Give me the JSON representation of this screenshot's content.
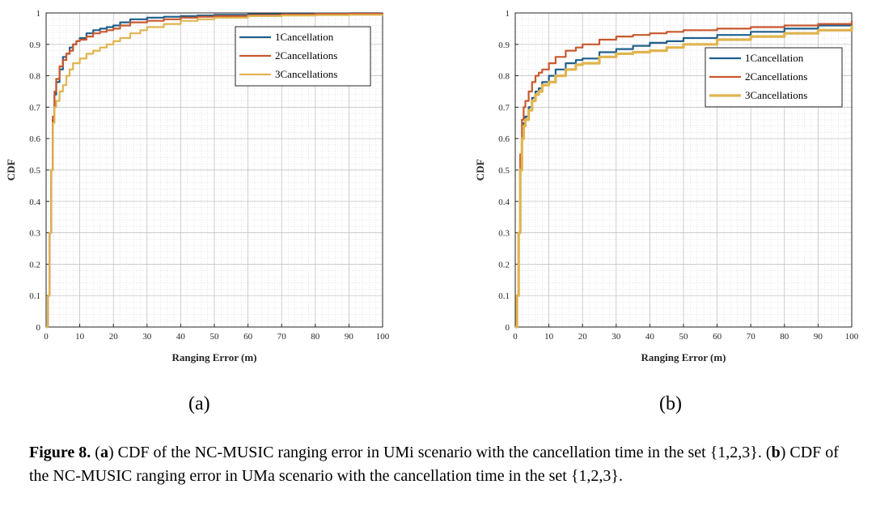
{
  "chart_data": [
    {
      "type": "line",
      "panel": "a",
      "xlabel": "Ranging Error (m)",
      "ylabel": "CDF",
      "xlim": [
        0,
        100
      ],
      "ylim": [
        0,
        1
      ],
      "xticks": [
        "0",
        "10",
        "20",
        "30",
        "40",
        "50",
        "60",
        "70",
        "80",
        "90",
        "100"
      ],
      "yticks": [
        "0",
        "0.1",
        "0.2",
        "0.3",
        "0.4",
        "0.5",
        "0.6",
        "0.7",
        "0.8",
        "0.9",
        "1"
      ],
      "grid": "major and minor (dotted)",
      "legend_position": "top-right",
      "series": [
        {
          "name": "1Cancellation",
          "color": "#1f5f8c",
          "width": 2.2,
          "x": [
            0,
            0.5,
            1,
            1.5,
            2,
            2.5,
            3,
            4,
            5,
            6,
            7,
            8,
            9,
            10,
            12,
            14,
            16,
            18,
            20,
            22,
            25,
            30,
            35,
            40,
            45,
            50,
            60,
            70,
            80,
            90,
            100
          ],
          "y": [
            0,
            0.1,
            0.3,
            0.5,
            0.66,
            0.74,
            0.78,
            0.82,
            0.86,
            0.87,
            0.89,
            0.9,
            0.91,
            0.92,
            0.935,
            0.945,
            0.95,
            0.955,
            0.96,
            0.97,
            0.98,
            0.985,
            0.988,
            0.99,
            0.992,
            0.994,
            0.996,
            0.997,
            0.998,
            0.999,
            1.0
          ]
        },
        {
          "name": "2Cancellations",
          "color": "#c8582e",
          "width": 2.2,
          "x": [
            0,
            0.5,
            1,
            1.5,
            2,
            2.5,
            3,
            4,
            5,
            6,
            7,
            8,
            9,
            10,
            12,
            14,
            16,
            18,
            20,
            22,
            25,
            30,
            35,
            40,
            45,
            50,
            60,
            70,
            80,
            90,
            100
          ],
          "y": [
            0,
            0.1,
            0.3,
            0.5,
            0.67,
            0.75,
            0.79,
            0.83,
            0.85,
            0.87,
            0.88,
            0.9,
            0.91,
            0.915,
            0.925,
            0.935,
            0.94,
            0.945,
            0.95,
            0.96,
            0.97,
            0.975,
            0.98,
            0.985,
            0.988,
            0.99,
            0.993,
            0.995,
            0.997,
            0.998,
            0.999
          ]
        },
        {
          "name": "3Cancellations",
          "color": "#e0b44f",
          "width": 2.2,
          "x": [
            0,
            0.5,
            1,
            1.5,
            2,
            2.5,
            3,
            4,
            5,
            6,
            7,
            8,
            10,
            12,
            14,
            16,
            18,
            20,
            22,
            25,
            28,
            30,
            35,
            40,
            45,
            50,
            60,
            70,
            80,
            90,
            100
          ],
          "y": [
            0,
            0.1,
            0.3,
            0.5,
            0.65,
            0.7,
            0.72,
            0.75,
            0.77,
            0.8,
            0.82,
            0.84,
            0.855,
            0.87,
            0.88,
            0.89,
            0.9,
            0.91,
            0.92,
            0.935,
            0.945,
            0.955,
            0.965,
            0.975,
            0.98,
            0.985,
            0.99,
            0.992,
            0.993,
            0.994,
            0.995
          ]
        }
      ]
    },
    {
      "type": "line",
      "panel": "b",
      "xlabel": "Ranging Error (m)",
      "ylabel": "CDF",
      "xlim": [
        0,
        100
      ],
      "ylim": [
        0,
        1
      ],
      "xticks": [
        "0",
        "10",
        "20",
        "30",
        "40",
        "50",
        "60",
        "70",
        "80",
        "90",
        "100"
      ],
      "yticks": [
        "0",
        "0.1",
        "0.2",
        "0.3",
        "0.4",
        "0.5",
        "0.6",
        "0.7",
        "0.8",
        "0.9",
        "1"
      ],
      "grid": "major and minor (dotted)",
      "legend_position": "top-right",
      "series": [
        {
          "name": "1Cancellation",
          "color": "#1f5f8c",
          "width": 2.2,
          "x": [
            0,
            0.5,
            1,
            1.5,
            2,
            2.5,
            3,
            4,
            5,
            6,
            7,
            8,
            10,
            12,
            15,
            18,
            20,
            25,
            30,
            35,
            40,
            45,
            50,
            60,
            70,
            80,
            90,
            100
          ],
          "y": [
            0,
            0.1,
            0.3,
            0.5,
            0.6,
            0.65,
            0.67,
            0.7,
            0.73,
            0.75,
            0.76,
            0.78,
            0.8,
            0.82,
            0.84,
            0.85,
            0.855,
            0.875,
            0.885,
            0.895,
            0.905,
            0.91,
            0.92,
            0.93,
            0.94,
            0.95,
            0.96,
            0.965
          ]
        },
        {
          "name": "2Cancellations",
          "color": "#c8582e",
          "width": 2.2,
          "x": [
            0,
            0.5,
            1,
            1.5,
            2,
            2.5,
            3,
            4,
            5,
            6,
            7,
            8,
            10,
            12,
            15,
            18,
            20,
            25,
            30,
            35,
            40,
            45,
            50,
            60,
            70,
            80,
            90,
            100
          ],
          "y": [
            0,
            0.1,
            0.3,
            0.55,
            0.66,
            0.7,
            0.72,
            0.75,
            0.78,
            0.8,
            0.81,
            0.82,
            0.84,
            0.86,
            0.88,
            0.89,
            0.9,
            0.915,
            0.925,
            0.93,
            0.935,
            0.94,
            0.945,
            0.95,
            0.955,
            0.96,
            0.965,
            0.975
          ]
        },
        {
          "name": "3Cancellations",
          "color": "#e0b44f",
          "width": 3.2,
          "x": [
            0,
            0.5,
            1,
            1.5,
            2,
            2.5,
            3,
            4,
            5,
            6,
            7,
            8,
            10,
            12,
            15,
            18,
            20,
            25,
            30,
            35,
            40,
            45,
            50,
            60,
            70,
            80,
            90,
            100
          ],
          "y": [
            0,
            0.1,
            0.3,
            0.5,
            0.6,
            0.64,
            0.66,
            0.69,
            0.72,
            0.74,
            0.75,
            0.77,
            0.78,
            0.8,
            0.82,
            0.835,
            0.84,
            0.86,
            0.87,
            0.875,
            0.88,
            0.89,
            0.9,
            0.915,
            0.925,
            0.935,
            0.945,
            0.96
          ]
        }
      ]
    }
  ],
  "panel_labels": {
    "a": "(a)",
    "b": "(b)"
  },
  "caption": {
    "figure_label": "Figure 8.",
    "open_paren_1": "(",
    "panel_a": "a",
    "close_paren_1": ")",
    "text_a": " CDF of the NC-MUSIC ranging error in UMi scenario with the cancellation time in the set {1,2,3}. ",
    "open_paren_2": "(",
    "panel_b": "b",
    "close_paren_2": ")",
    "text_b": " CDF of the NC-MUSIC ranging error in UMa scenario with the cancellation time in the set {1,2,3}."
  }
}
